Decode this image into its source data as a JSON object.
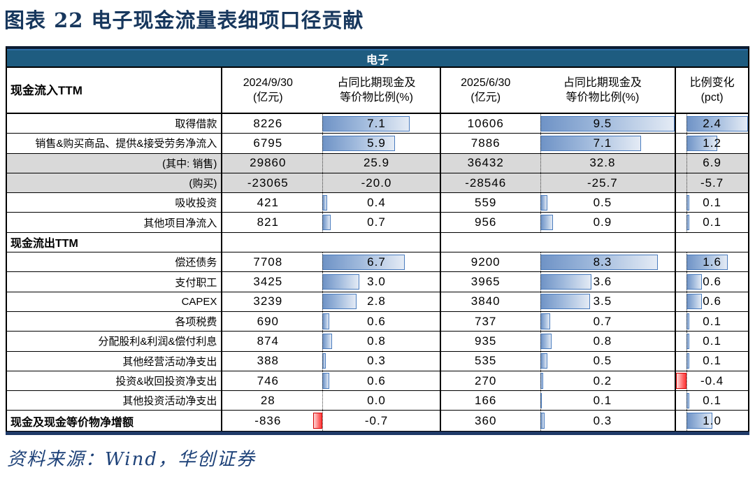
{
  "title": "图表 22  电子现金流量表细项口径贡献",
  "footer": "资料来源：Wind，华创证券",
  "colors": {
    "band_bg": "#1E5C80",
    "title_text": "#17375D",
    "bar_blue_border": "#4A7CBE",
    "bar_blue_fill_start": "#6F93C6",
    "bar_neg_border": "#D40000",
    "bar_neg_fill": "#FF4A4A",
    "gray_row_bg": "#D9D9D9",
    "bottom_line": "#1F3A68"
  },
  "chart_data": {
    "type": "table",
    "title": "电子",
    "header": {
      "col1": "现金流入TTM",
      "col2": [
        "2024/9/30",
        "(亿元)"
      ],
      "col3": [
        "占同比期现金及",
        "等价物比例(%)"
      ],
      "col4": [
        "2025/6/30",
        "(亿元)"
      ],
      "col5": [
        "占同比期现金及",
        "等价物比例(%)"
      ],
      "col6": [
        "比例变化",
        "(pct)"
      ]
    },
    "layout_hints": {
      "databar_columns": [
        "p1",
        "p2",
        "chg"
      ],
      "pct_bar_min": -0.7,
      "pct_bar_max": 9.5,
      "chg_bar_min": -0.4,
      "chg_bar_max": 2.4,
      "gray_rows_have_no_bars": true
    },
    "rows": [
      {
        "label": "取得借款",
        "style": "normal",
        "v1": "8226",
        "p1": "7.1",
        "v2": "10606",
        "p2": "9.5",
        "chg": "2.4"
      },
      {
        "label": "销售&购买商品、提供&接受劳务净流入",
        "style": "normal",
        "v1": "6795",
        "p1": "5.9",
        "v2": "7886",
        "p2": "7.1",
        "chg": "1.2"
      },
      {
        "label": "(其中: 销售)",
        "style": "gray",
        "v1": "29860",
        "p1": "25.9",
        "v2": "36432",
        "p2": "32.8",
        "chg": "6.9"
      },
      {
        "label": "(购买)",
        "style": "gray",
        "v1": "-23065",
        "p1": "-20.0",
        "v2": "-28546",
        "p2": "-25.7",
        "chg": "-5.7"
      },
      {
        "label": "吸收投资",
        "style": "normal",
        "v1": "421",
        "p1": "0.4",
        "v2": "559",
        "p2": "0.5",
        "chg": "0.1"
      },
      {
        "label": "其他项目净流入",
        "style": "normal",
        "v1": "821",
        "p1": "0.7",
        "v2": "956",
        "p2": "0.9",
        "chg": "0.1"
      },
      {
        "label": "现金流出TTM",
        "style": "section",
        "v1": "",
        "p1": "",
        "v2": "",
        "p2": "",
        "chg": ""
      },
      {
        "label": "偿还债务",
        "style": "normal",
        "v1": "7708",
        "p1": "6.7",
        "v2": "9200",
        "p2": "8.3",
        "chg": "1.6"
      },
      {
        "label": "支付职工",
        "style": "normal",
        "v1": "3425",
        "p1": "3.0",
        "v2": "3965",
        "p2": "3.6",
        "chg": "0.6"
      },
      {
        "label": "CAPEX",
        "style": "normal",
        "v1": "3239",
        "p1": "2.8",
        "v2": "3840",
        "p2": "3.5",
        "chg": "0.6"
      },
      {
        "label": "各项税费",
        "style": "normal",
        "v1": "690",
        "p1": "0.6",
        "v2": "737",
        "p2": "0.7",
        "chg": "0.1"
      },
      {
        "label": "分配股利&利润&偿付利息",
        "style": "normal",
        "v1": "874",
        "p1": "0.8",
        "v2": "935",
        "p2": "0.8",
        "chg": "0.1"
      },
      {
        "label": "其他经营活动净支出",
        "style": "normal",
        "v1": "388",
        "p1": "0.3",
        "v2": "535",
        "p2": "0.5",
        "chg": "0.1"
      },
      {
        "label": "投资&收回投资净支出",
        "style": "normal",
        "v1": "746",
        "p1": "0.6",
        "v2": "270",
        "p2": "0.2",
        "chg": "-0.4"
      },
      {
        "label": "其他投资活动净支出",
        "style": "normal",
        "v1": "28",
        "p1": "0.0",
        "v2": "166",
        "p2": "0.1",
        "chg": "0.1"
      },
      {
        "label": "现金及现金等价物净增额",
        "style": "total",
        "v1": "-836",
        "p1": "-0.7",
        "v2": "360",
        "p2": "0.3",
        "chg": "1.0"
      }
    ]
  }
}
